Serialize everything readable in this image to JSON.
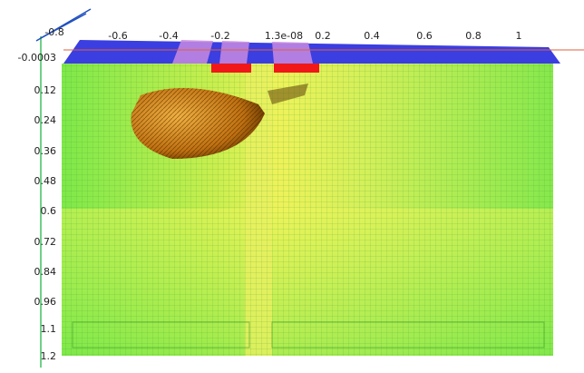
{
  "axes": {
    "top_labels": [
      "-0.8",
      "-0.6",
      "-0.4",
      "-0.2",
      "1.3e-08",
      "0.2",
      "0.4",
      "0.6",
      "0.8",
      "1"
    ],
    "left_labels": [
      "-0.0003",
      "0.12",
      "0.24",
      "0.36",
      "0.48",
      "0.6",
      "0.72",
      "0.84",
      "0.96",
      "1.1",
      "1.2"
    ]
  }
}
